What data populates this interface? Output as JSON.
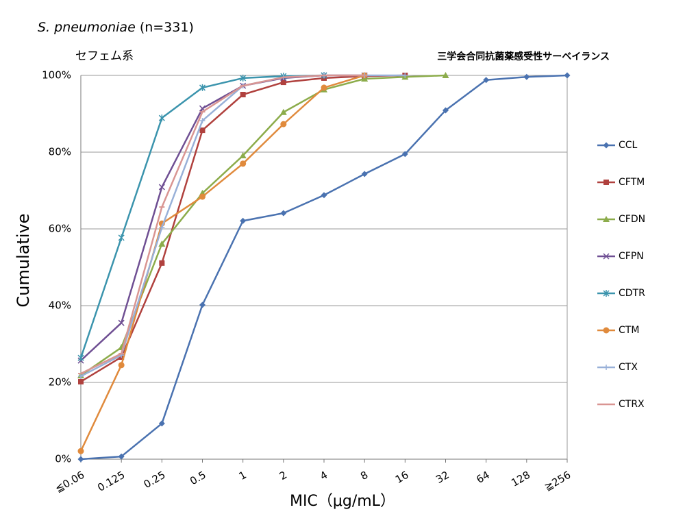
{
  "chart_data": {
    "type": "line",
    "title": "S. pneumoniae",
    "title_suffix": "(n=331)",
    "subtitle": "セフェム系",
    "annotation": "三学会合同抗菌薬感受性サーベイランス",
    "x_label": "MIC（μg/mL）",
    "y_label": "Cumulative",
    "categories": [
      "≦0.06",
      "0.125",
      "0.25",
      "0.5",
      "1",
      "2",
      "4",
      "8",
      "16",
      "32",
      "64",
      "128",
      "≧256"
    ],
    "ylim": [
      0,
      100
    ],
    "yticks": [
      {
        "value": 0,
        "label": "0%"
      },
      {
        "value": 20,
        "label": "20%"
      },
      {
        "value": 40,
        "label": "40%"
      },
      {
        "value": 60,
        "label": "60%"
      },
      {
        "value": 80,
        "label": "80%"
      },
      {
        "value": 100,
        "label": "100%"
      }
    ],
    "grid": true,
    "legend": "right",
    "series": [
      {
        "name": "CCL",
        "color": "#4a72b0",
        "marker": "diamond",
        "values": [
          0,
          0.7,
          9.3,
          40.2,
          62.1,
          64.1,
          68.8,
          74.3,
          79.5,
          90.9,
          98.8,
          99.6,
          100
        ]
      },
      {
        "name": "CFTM",
        "color": "#b0413e",
        "marker": "square",
        "values": [
          20.2,
          26.6,
          51.1,
          85.7,
          95.0,
          98.2,
          99.3,
          99.8,
          100,
          null,
          null,
          null,
          null
        ]
      },
      {
        "name": "CFDN",
        "color": "#8cac4b",
        "marker": "triangle",
        "values": [
          21.8,
          29.1,
          56.1,
          69.3,
          79.1,
          90.4,
          96.3,
          99.1,
          99.6,
          100,
          null,
          null,
          null
        ]
      },
      {
        "name": "CFPN",
        "color": "#6f4f93",
        "marker": "x",
        "values": [
          25.7,
          35.5,
          70.9,
          91.4,
          97.3,
          99.3,
          100,
          100,
          null,
          null,
          null,
          null,
          null
        ]
      },
      {
        "name": "CDTR",
        "color": "#3b94ad",
        "marker": "star",
        "values": [
          26.4,
          57.7,
          88.9,
          96.8,
          99.3,
          99.8,
          100,
          null,
          null,
          null,
          null,
          null,
          null
        ]
      },
      {
        "name": "CTM",
        "color": "#e08a3c",
        "marker": "circle",
        "values": [
          2.1,
          24.5,
          61.4,
          68.4,
          77.0,
          87.3,
          96.8,
          100,
          null,
          null,
          null,
          null,
          null
        ]
      },
      {
        "name": "CTX",
        "color": "#98b0d8",
        "marker": "plus",
        "values": [
          21.6,
          27.1,
          60.4,
          88.2,
          97.3,
          99.5,
          100,
          100,
          100,
          null,
          null,
          null,
          null
        ]
      },
      {
        "name": "CTRX",
        "color": "#d99592",
        "marker": "dash",
        "values": [
          22.3,
          27.5,
          65.7,
          90.5,
          97.3,
          99.5,
          100,
          100,
          null,
          null,
          null,
          null,
          null
        ]
      }
    ]
  }
}
